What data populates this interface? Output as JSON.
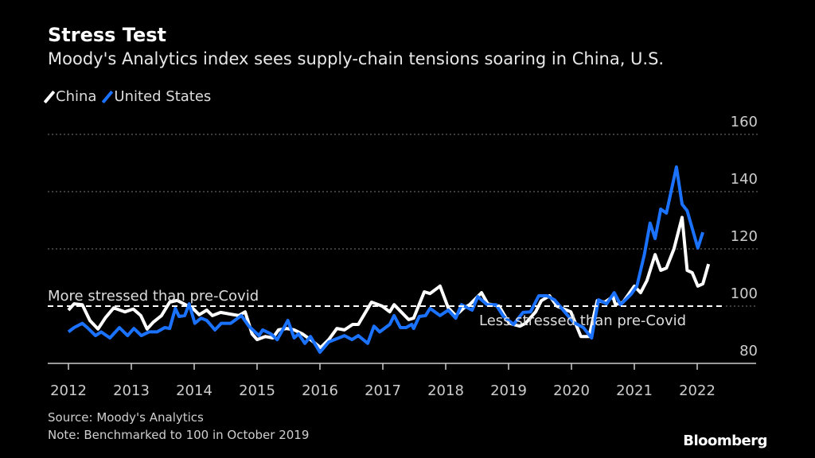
{
  "title": "Stress Test",
  "subtitle": "Moody's Analytics index sees supply-chain tensions soaring in China, U.S.",
  "source": "Source: Moody's Analytics",
  "note": "Note: Benchmarked to 100 in October 2019",
  "logo": "Bloomberg",
  "colors": {
    "china": "#ffffff",
    "united_states": "#1a72ff",
    "background": "#000000"
  },
  "chart_data": {
    "type": "line",
    "title": "Stress Test",
    "subtitle": "Moody's Analytics index sees supply-chain tensions soaring in China, U.S.",
    "xlim": [
      2011.7,
      2022.8
    ],
    "ylim": [
      80,
      160
    ],
    "x_ticks": [
      "2012",
      "2013",
      "2014",
      "2015",
      "2016",
      "2017",
      "2018",
      "2019",
      "2020",
      "2021",
      "2022"
    ],
    "y_ticks": [
      "80",
      "100",
      "120",
      "140",
      "160"
    ],
    "grid": "horizontal dotted",
    "legend": "top-left",
    "reference_line": {
      "value": 100,
      "style": "dashed"
    },
    "annotations": [
      {
        "text": "More stressed than pre-Covid",
        "x": 2011.7,
        "y": 100
      },
      {
        "text": "Less stressed than pre-Covid",
        "x": 2018.5,
        "y": 100
      }
    ],
    "series": [
      {
        "name": "China",
        "color": "#ffffff",
        "points": [
          [
            2012.0,
            98.6
          ],
          [
            2012.09,
            100.8
          ],
          [
            2012.22,
            100.5
          ],
          [
            2012.34,
            95
          ],
          [
            2012.47,
            92
          ],
          [
            2012.59,
            96
          ],
          [
            2012.72,
            99.4
          ],
          [
            2012.9,
            98
          ],
          [
            2013.03,
            99
          ],
          [
            2013.15,
            96.7
          ],
          [
            2013.25,
            92
          ],
          [
            2013.35,
            94.4
          ],
          [
            2013.48,
            96.7
          ],
          [
            2013.61,
            101.4
          ],
          [
            2013.73,
            102
          ],
          [
            2013.86,
            100.5
          ],
          [
            2013.97,
            99.4
          ],
          [
            2014.08,
            97
          ],
          [
            2014.2,
            98.6
          ],
          [
            2014.29,
            96.7
          ],
          [
            2014.42,
            97.8
          ],
          [
            2014.58,
            97.2
          ],
          [
            2014.71,
            96.7
          ],
          [
            2014.81,
            98
          ],
          [
            2014.92,
            90.3
          ],
          [
            2015.0,
            88.3
          ],
          [
            2015.13,
            89.4
          ],
          [
            2015.25,
            88.9
          ],
          [
            2015.34,
            91.7
          ],
          [
            2015.47,
            92.2
          ],
          [
            2015.59,
            91.7
          ],
          [
            2015.72,
            90.3
          ],
          [
            2015.85,
            88.3
          ],
          [
            2016.01,
            85.5
          ],
          [
            2016.14,
            88.3
          ],
          [
            2016.27,
            92.2
          ],
          [
            2016.39,
            91.7
          ],
          [
            2016.52,
            93.6
          ],
          [
            2016.61,
            93.6
          ],
          [
            2016.82,
            101.4
          ],
          [
            2016.99,
            100
          ],
          [
            2017.11,
            98
          ],
          [
            2017.18,
            100.5
          ],
          [
            2017.41,
            95.3
          ],
          [
            2017.49,
            95.8
          ],
          [
            2017.66,
            105
          ],
          [
            2017.75,
            104.4
          ],
          [
            2017.91,
            107
          ],
          [
            2018.04,
            99.4
          ],
          [
            2018.16,
            96.7
          ],
          [
            2018.29,
            99.4
          ],
          [
            2018.38,
            100.5
          ],
          [
            2018.57,
            104.7
          ],
          [
            2018.67,
            100.8
          ],
          [
            2018.85,
            100
          ],
          [
            2019.01,
            94
          ],
          [
            2019.18,
            93
          ],
          [
            2019.27,
            94
          ],
          [
            2019.43,
            98
          ],
          [
            2019.52,
            101.9
          ],
          [
            2019.65,
            103.6
          ],
          [
            2019.77,
            100
          ],
          [
            2019.99,
            98
          ],
          [
            2020.15,
            89.4
          ],
          [
            2020.28,
            89.4
          ],
          [
            2020.41,
            101.9
          ],
          [
            2020.53,
            101.4
          ],
          [
            2020.66,
            103.3
          ],
          [
            2020.7,
            100.5
          ],
          [
            2020.82,
            101.4
          ],
          [
            2021.0,
            107
          ],
          [
            2021.1,
            104.7
          ],
          [
            2021.2,
            108.9
          ],
          [
            2021.33,
            118
          ],
          [
            2021.42,
            112.5
          ],
          [
            2021.51,
            113.3
          ],
          [
            2021.63,
            120
          ],
          [
            2021.76,
            131
          ],
          [
            2021.84,
            112.5
          ],
          [
            2021.92,
            111.7
          ],
          [
            2022.01,
            107
          ],
          [
            2022.09,
            107.8
          ],
          [
            2022.18,
            114.7
          ]
        ]
      },
      {
        "name": "United States",
        "color": "#1a72ff",
        "points": [
          [
            2012.0,
            91
          ],
          [
            2012.09,
            92.5
          ],
          [
            2012.22,
            94
          ],
          [
            2012.3,
            92.5
          ],
          [
            2012.43,
            89.7
          ],
          [
            2012.52,
            91
          ],
          [
            2012.66,
            88.9
          ],
          [
            2012.81,
            92.5
          ],
          [
            2012.94,
            89.7
          ],
          [
            2013.04,
            92.2
          ],
          [
            2013.16,
            89.7
          ],
          [
            2013.28,
            91
          ],
          [
            2013.41,
            91
          ],
          [
            2013.53,
            92.5
          ],
          [
            2013.61,
            92.2
          ],
          [
            2013.7,
            99.2
          ],
          [
            2013.76,
            96.4
          ],
          [
            2013.85,
            96.7
          ],
          [
            2013.92,
            100.8
          ],
          [
            2014.01,
            94
          ],
          [
            2014.11,
            95.8
          ],
          [
            2014.2,
            95
          ],
          [
            2014.33,
            91.7
          ],
          [
            2014.43,
            94
          ],
          [
            2014.58,
            94
          ],
          [
            2014.75,
            96.7
          ],
          [
            2014.87,
            93
          ],
          [
            2015.03,
            89.7
          ],
          [
            2015.09,
            91.7
          ],
          [
            2015.22,
            90.3
          ],
          [
            2015.32,
            88.3
          ],
          [
            2015.49,
            95
          ],
          [
            2015.59,
            88.9
          ],
          [
            2015.66,
            90.3
          ],
          [
            2015.76,
            87
          ],
          [
            2015.85,
            89.4
          ],
          [
            2016.0,
            83.9
          ],
          [
            2016.14,
            87.5
          ],
          [
            2016.39,
            89.7
          ],
          [
            2016.51,
            88.3
          ],
          [
            2016.61,
            89.7
          ],
          [
            2016.76,
            87
          ],
          [
            2016.86,
            93
          ],
          [
            2016.95,
            91
          ],
          [
            2017.11,
            93.6
          ],
          [
            2017.18,
            96.7
          ],
          [
            2017.28,
            92.5
          ],
          [
            2017.37,
            92.5
          ],
          [
            2017.46,
            93.6
          ],
          [
            2017.49,
            92.2
          ],
          [
            2017.58,
            96.4
          ],
          [
            2017.68,
            96.7
          ],
          [
            2017.75,
            99.2
          ],
          [
            2017.91,
            96.7
          ],
          [
            2018.04,
            98.6
          ],
          [
            2018.16,
            95.8
          ],
          [
            2018.25,
            100.5
          ],
          [
            2018.42,
            98.6
          ],
          [
            2018.51,
            103.3
          ],
          [
            2018.66,
            100.5
          ],
          [
            2018.8,
            100.5
          ],
          [
            2018.92,
            96.4
          ],
          [
            2019.08,
            93.6
          ],
          [
            2019.23,
            97.8
          ],
          [
            2019.35,
            98
          ],
          [
            2019.48,
            103.6
          ],
          [
            2019.61,
            103.6
          ],
          [
            2019.73,
            102.2
          ],
          [
            2019.9,
            97.8
          ],
          [
            2020.03,
            94.4
          ],
          [
            2020.19,
            92.5
          ],
          [
            2020.32,
            88.9
          ],
          [
            2020.43,
            102.2
          ],
          [
            2020.56,
            100.8
          ],
          [
            2020.68,
            104.7
          ],
          [
            2020.78,
            100.5
          ],
          [
            2020.95,
            104.2
          ],
          [
            2021.04,
            107
          ],
          [
            2021.16,
            118
          ],
          [
            2021.25,
            129
          ],
          [
            2021.33,
            123.6
          ],
          [
            2021.42,
            133.9
          ],
          [
            2021.51,
            132.5
          ],
          [
            2021.67,
            148.6
          ],
          [
            2021.76,
            135.6
          ],
          [
            2021.84,
            133.3
          ],
          [
            2022.01,
            120.3
          ],
          [
            2022.09,
            125.8
          ]
        ]
      }
    ]
  }
}
